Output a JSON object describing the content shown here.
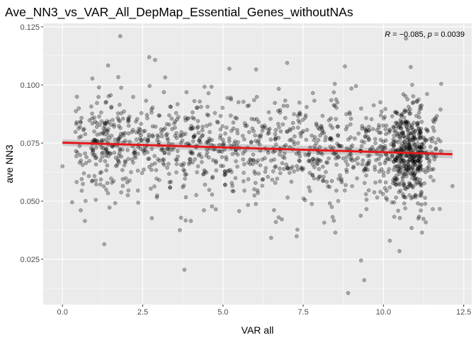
{
  "chart_data": {
    "type": "scatter",
    "title": "Ave_NN3_vs_VAR_All_DepMap_Essential_Genes_withoutNAs",
    "xlabel": "VAR all",
    "ylabel": "ave NN3",
    "xlim": [
      -0.6,
      12.75
    ],
    "ylim": [
      0.0055,
      0.1265
    ],
    "x_ticks": [
      0.0,
      2.5,
      5.0,
      7.5,
      10.0,
      12.5
    ],
    "x_tick_labels": [
      "0.0",
      "2.5",
      "5.0",
      "7.5",
      "10.0",
      "12.5"
    ],
    "y_ticks": [
      0.025,
      0.05,
      0.075,
      0.1,
      0.125
    ],
    "y_tick_labels": [
      "0.025",
      "0.050",
      "0.075",
      "0.100",
      "0.125"
    ],
    "annotation": {
      "r_symbol": "R",
      "r_text": " = −0.085, ",
      "p_symbol": "p",
      "p_text": " = 0.0039"
    },
    "regression": {
      "x": [
        0.0,
        12.15
      ],
      "y": [
        0.0752,
        0.0702
      ],
      "color": "#e41a1c"
    },
    "confidence_band": {
      "x": [
        0.0,
        12.15
      ],
      "lower": [
        0.0738,
        0.0684
      ],
      "upper": [
        0.0766,
        0.072
      ]
    },
    "point_count_approx": 1500,
    "highlighted_points": {
      "x": [
        0.0,
        0.3,
        0.6,
        0.7,
        1.3,
        1.8,
        2.7,
        3.8,
        4.0,
        5.2,
        6.5,
        7.0,
        7.8,
        8.5,
        8.8,
        8.9,
        9.0,
        9.3,
        9.4,
        10.2,
        10.5,
        10.7,
        11.2,
        11.8,
        12.15
      ],
      "y": [
        0.065,
        0.0495,
        0.0545,
        0.0415,
        0.0315,
        0.121,
        0.112,
        0.0205,
        0.0415,
        0.107,
        0.0342,
        0.1095,
        0.0965,
        0.0365,
        0.108,
        0.0105,
        0.0985,
        0.0245,
        0.016,
        0.033,
        0.0285,
        0.12,
        0.0365,
        0.1005,
        0.0565
      ]
    },
    "cloud": {
      "generator": "deterministic",
      "center_y_at_x0": 0.0752,
      "center_y_at_xmax": 0.0702,
      "spread_sd": 0.0125,
      "x_range": [
        0.0,
        12.15
      ],
      "density_peak_x": [
        10.3,
        11.2
      ]
    },
    "point_color": "#000000",
    "point_opacity": 0.3,
    "panel_background": "#ebebeb",
    "grid": true,
    "grid_color": "#ffffff"
  }
}
